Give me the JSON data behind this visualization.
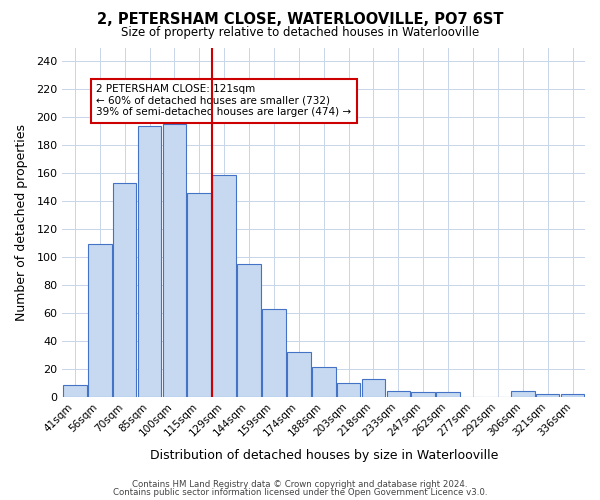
{
  "title": "2, PETERSHAM CLOSE, WATERLOOVILLE, PO7 6ST",
  "subtitle": "Size of property relative to detached houses in Waterlooville",
  "xlabel": "Distribution of detached houses by size in Waterlooville",
  "ylabel": "Number of detached properties",
  "categories": [
    "41sqm",
    "56sqm",
    "70sqm",
    "85sqm",
    "100sqm",
    "115sqm",
    "129sqm",
    "144sqm",
    "159sqm",
    "174sqm",
    "188sqm",
    "203sqm",
    "218sqm",
    "233sqm",
    "247sqm",
    "262sqm",
    "277sqm",
    "292sqm",
    "306sqm",
    "321sqm",
    "336sqm"
  ],
  "values": [
    8,
    109,
    153,
    194,
    195,
    146,
    159,
    95,
    63,
    32,
    21,
    10,
    13,
    4,
    3,
    3,
    0,
    0,
    4,
    2,
    2
  ],
  "bar_color": "#c6d9f0",
  "bar_edge_color": "#4472c4",
  "vline_x": 5.5,
  "vline_color": "#cc0000",
  "annotation_text": "2 PETERSHAM CLOSE: 121sqm\n← 60% of detached houses are smaller (732)\n39% of semi-detached houses are larger (474) →",
  "annotation_box_color": "#ffffff",
  "annotation_box_edge": "#cc0000",
  "footer1": "Contains HM Land Registry data © Crown copyright and database right 2024.",
  "footer2": "Contains public sector information licensed under the Open Government Licence v3.0.",
  "ylim": [
    0,
    250
  ],
  "yticks": [
    0,
    20,
    40,
    60,
    80,
    100,
    120,
    140,
    160,
    180,
    200,
    220,
    240
  ],
  "background_color": "#ffffff",
  "grid_color": "#c8d4e8"
}
